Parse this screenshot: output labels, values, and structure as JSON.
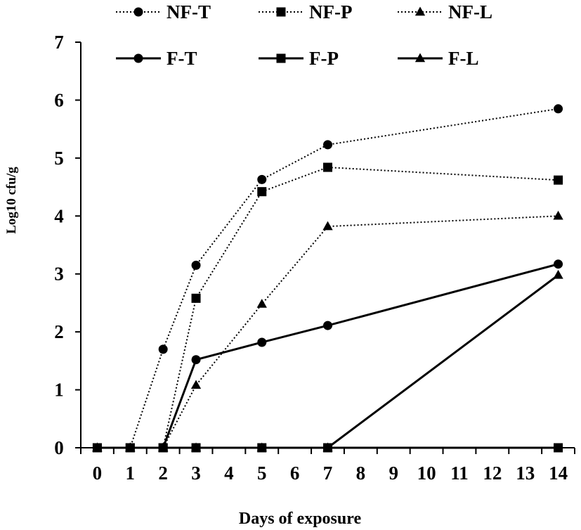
{
  "chart_data": {
    "type": "line",
    "title": "",
    "xlabel": "Days of exposure",
    "ylabel": "Log10 cfu/g",
    "categories": [
      "0",
      "1",
      "2",
      "3",
      "4",
      "5",
      "6",
      "7",
      "8",
      "9",
      "10",
      "11",
      "12",
      "13",
      "14"
    ],
    "ylim": [
      0,
      7
    ],
    "yticks": [
      0,
      1,
      2,
      3,
      4,
      5,
      6,
      7
    ],
    "grid": false,
    "legend_position": "top",
    "series": [
      {
        "name": "NF-T",
        "style": "dotted",
        "marker": "circle",
        "points": [
          [
            0,
            0
          ],
          [
            1,
            0
          ],
          [
            2,
            1.7
          ],
          [
            3,
            3.15
          ],
          [
            5,
            4.63
          ],
          [
            7,
            5.23
          ],
          [
            14,
            5.85
          ]
        ]
      },
      {
        "name": "NF-P",
        "style": "dotted",
        "marker": "square",
        "points": [
          [
            0,
            0
          ],
          [
            1,
            0
          ],
          [
            2,
            0
          ],
          [
            3,
            2.58
          ],
          [
            5,
            4.42
          ],
          [
            7,
            4.84
          ],
          [
            14,
            4.62
          ]
        ]
      },
      {
        "name": "NF-L",
        "style": "dotted",
        "marker": "triangle",
        "points": [
          [
            0,
            0
          ],
          [
            1,
            0
          ],
          [
            2,
            0
          ],
          [
            3,
            1.08
          ],
          [
            5,
            2.48
          ],
          [
            7,
            3.82
          ],
          [
            14,
            4.0
          ]
        ]
      },
      {
        "name": "F-T",
        "style": "solid",
        "marker": "circle",
        "points": [
          [
            0,
            0
          ],
          [
            1,
            0
          ],
          [
            2,
            0
          ],
          [
            3,
            1.52
          ],
          [
            5,
            1.82
          ],
          [
            7,
            2.11
          ],
          [
            14,
            3.17
          ]
        ]
      },
      {
        "name": "F-P",
        "style": "solid",
        "marker": "square",
        "points": [
          [
            0,
            0
          ],
          [
            1,
            0
          ],
          [
            2,
            0
          ],
          [
            3,
            0
          ],
          [
            5,
            0
          ],
          [
            7,
            0
          ],
          [
            14,
            0
          ]
        ]
      },
      {
        "name": "F-L",
        "style": "solid",
        "marker": "triangle",
        "points": [
          [
            0,
            0
          ],
          [
            1,
            0
          ],
          [
            2,
            0
          ],
          [
            3,
            0
          ],
          [
            5,
            0
          ],
          [
            7,
            0
          ],
          [
            14,
            2.98
          ]
        ]
      }
    ]
  }
}
